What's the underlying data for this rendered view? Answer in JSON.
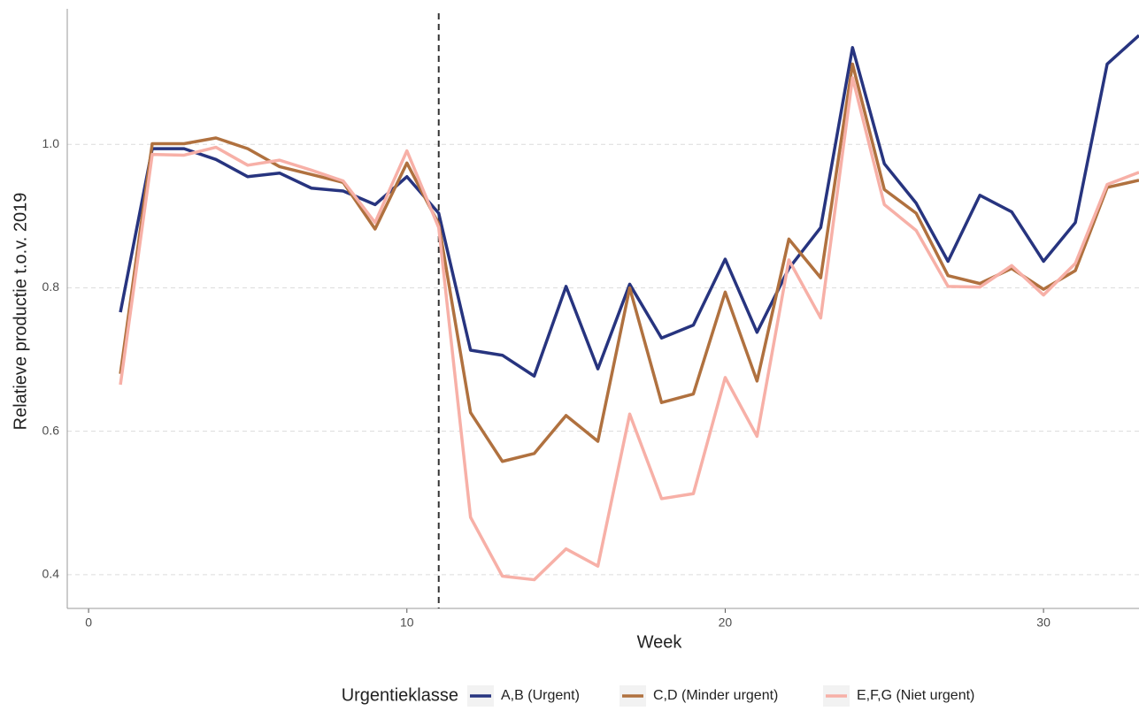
{
  "chart_data": {
    "type": "line",
    "x_label": "Week",
    "y_label": "Relatieve productie t.o.v. 2019",
    "legend_title": "Urgentieklasse",
    "legend_position": "bottom",
    "x": [
      1,
      2,
      3,
      4,
      5,
      6,
      7,
      8,
      9,
      10,
      11,
      12,
      13,
      14,
      15,
      16,
      17,
      18,
      19,
      20,
      21,
      22,
      23,
      24,
      25,
      26,
      27,
      28,
      29,
      30,
      31,
      32,
      33
    ],
    "series": [
      {
        "name": "A,B (Urgent)",
        "color": "#27347f",
        "values": [
          0.766,
          0.994,
          0.994,
          0.979,
          0.955,
          0.96,
          0.939,
          0.935,
          0.916,
          0.955,
          0.904,
          0.713,
          0.706,
          0.677,
          0.802,
          0.687,
          0.805,
          0.73,
          0.748,
          0.84,
          0.738,
          0.827,
          0.884,
          1.135,
          0.973,
          0.918,
          0.837,
          0.929,
          0.906,
          0.837,
          0.891,
          1.112,
          1.152
        ]
      },
      {
        "name": "C,D (Minder urgent)",
        "color": "#b0713f",
        "values": [
          0.68,
          1.001,
          1.001,
          1.009,
          0.994,
          0.969,
          0.958,
          0.947,
          0.882,
          0.974,
          0.889,
          0.626,
          0.558,
          0.569,
          0.622,
          0.586,
          0.8,
          0.64,
          0.652,
          0.794,
          0.67,
          0.868,
          0.814,
          1.112,
          0.937,
          0.904,
          0.817,
          0.806,
          0.827,
          0.798,
          0.824,
          0.94,
          0.95
        ]
      },
      {
        "name": "E,F,G (Niet urgent)",
        "color": "#f7b0a7",
        "values": [
          0.665,
          0.986,
          0.985,
          0.996,
          0.971,
          0.978,
          0.964,
          0.949,
          0.891,
          0.991,
          0.884,
          0.48,
          0.398,
          0.393,
          0.436,
          0.412,
          0.624,
          0.506,
          0.513,
          0.675,
          0.593,
          0.839,
          0.758,
          1.093,
          0.916,
          0.88,
          0.802,
          0.801,
          0.831,
          0.79,
          0.834,
          0.944,
          0.961
        ]
      }
    ],
    "vline": 11,
    "xlim": [
      -0.67,
      33.0
    ],
    "ylim": [
      0.353,
      1.189
    ],
    "xticks": [
      0,
      10,
      20,
      30
    ],
    "yticks": [
      0.4,
      0.6,
      0.8,
      {
        "value": 1,
        "label": "1.0"
      }
    ],
    "grid": true
  }
}
